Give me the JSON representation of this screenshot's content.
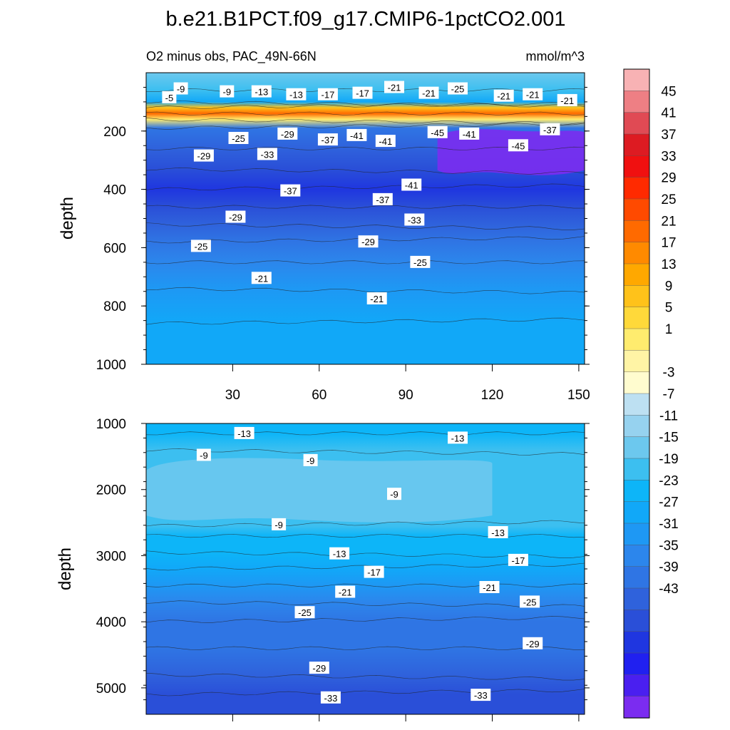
{
  "chart_data": {
    "type": "heatmap",
    "title": "b.e21.B1PCT.f09_g17.CMIP6-1pctCO2.001",
    "subtitle_left": "O2 minus obs, PAC_49N-66N",
    "units": "mmol/m^3",
    "colors": {
      "bar_neg": [
        "#7b2cf0",
        "#4a1ff0",
        "#2020f0",
        "#1f36e0",
        "#2a4fd8",
        "#2f62dc",
        "#2f75e4",
        "#2c86ec",
        "#1e98f4",
        "#11a8f8",
        "#0db5f8",
        "#3cbff0",
        "#6cc8ee",
        "#96d2ef",
        "#bde0f2"
      ],
      "bar_pos": [
        "#fffccf",
        "#fff4a5",
        "#ffec6e",
        "#ffd93a",
        "#ffc21a",
        "#ffa800",
        "#ff8a00",
        "#ff6a00",
        "#ff4a00",
        "#ff2a00",
        "#f01010",
        "#dd1b22",
        "#e04a54",
        "#ee7f84",
        "#f8b2b4"
      ]
    },
    "colorbar": {
      "labels": [
        "45",
        "41",
        "37",
        "33",
        "29",
        "25",
        "21",
        "17",
        "13",
        "9",
        "5",
        "1",
        "-3",
        "-7",
        "-11",
        "-15",
        "-19",
        "-23",
        "-27",
        "-31",
        "-35",
        "-39",
        "-43"
      ]
    },
    "panels": [
      {
        "name": "upper",
        "ylabel": "depth",
        "ylim": [
          0,
          1000
        ],
        "yticks": [
          200,
          400,
          600,
          800,
          1000
        ],
        "xlim": [
          0,
          152
        ],
        "xticks": [
          30,
          60,
          90,
          120,
          150
        ],
        "bands": [
          {
            "depth": 0,
            "value": -8
          },
          {
            "depth": 60,
            "value": -12
          },
          {
            "depth": 100,
            "value": -18
          },
          {
            "depth": 120,
            "value": 12
          },
          {
            "depth": 140,
            "value": 22
          },
          {
            "depth": 160,
            "value": 8
          },
          {
            "depth": 190,
            "value": -28
          },
          {
            "depth": 260,
            "value": -31
          },
          {
            "depth": 330,
            "value": -33
          },
          {
            "depth": 400,
            "value": -35
          },
          {
            "depth": 460,
            "value": -34
          },
          {
            "depth": 520,
            "value": -29
          },
          {
            "depth": 580,
            "value": -26
          },
          {
            "depth": 650,
            "value": -23
          },
          {
            "depth": 740,
            "value": -21
          },
          {
            "depth": 860,
            "value": -19
          },
          {
            "depth": 1000,
            "value": -17
          }
        ],
        "region": {
          "x_start": 101,
          "x_end": 152,
          "depth_top": 190,
          "depth_bottom": 360,
          "value": -46
        },
        "contour_labels": [
          {
            "text": "-5",
            "x": 8,
            "depth": 85
          },
          {
            "text": "-9",
            "x": 12,
            "depth": 55
          },
          {
            "text": "-9",
            "x": 28,
            "depth": 65
          },
          {
            "text": "-13",
            "x": 40,
            "depth": 65
          },
          {
            "text": "-13",
            "x": 52,
            "depth": 75
          },
          {
            "text": "-17",
            "x": 63,
            "depth": 75
          },
          {
            "text": "-17",
            "x": 75,
            "depth": 70
          },
          {
            "text": "-21",
            "x": 86,
            "depth": 50
          },
          {
            "text": "-21",
            "x": 98,
            "depth": 70
          },
          {
            "text": "-25",
            "x": 108,
            "depth": 55
          },
          {
            "text": "-21",
            "x": 124,
            "depth": 80
          },
          {
            "text": "-21",
            "x": 134,
            "depth": 75
          },
          {
            "text": "-21",
            "x": 146,
            "depth": 95
          },
          {
            "text": "-25",
            "x": 32,
            "depth": 225
          },
          {
            "text": "-29",
            "x": 49,
            "depth": 210
          },
          {
            "text": "-37",
            "x": 63,
            "depth": 230
          },
          {
            "text": "-41",
            "x": 73,
            "depth": 215
          },
          {
            "text": "-41",
            "x": 83,
            "depth": 235
          },
          {
            "text": "-45",
            "x": 101,
            "depth": 205
          },
          {
            "text": "-41",
            "x": 112,
            "depth": 210
          },
          {
            "text": "-37",
            "x": 140,
            "depth": 195
          },
          {
            "text": "-45",
            "x": 129,
            "depth": 250
          },
          {
            "text": "-29",
            "x": 20,
            "depth": 285
          },
          {
            "text": "-33",
            "x": 42,
            "depth": 280
          },
          {
            "text": "-37",
            "x": 50,
            "depth": 405
          },
          {
            "text": "-41",
            "x": 92,
            "depth": 385
          },
          {
            "text": "-37",
            "x": 82,
            "depth": 435
          },
          {
            "text": "-29",
            "x": 31,
            "depth": 495
          },
          {
            "text": "-33",
            "x": 93,
            "depth": 505
          },
          {
            "text": "-25",
            "x": 19,
            "depth": 595
          },
          {
            "text": "-29",
            "x": 77,
            "depth": 580
          },
          {
            "text": "-25",
            "x": 95,
            "depth": 650
          },
          {
            "text": "-21",
            "x": 40,
            "depth": 705
          },
          {
            "text": "-21",
            "x": 80,
            "depth": 775
          }
        ]
      },
      {
        "name": "lower",
        "ylabel": "depth",
        "ylim": [
          1000,
          5400
        ],
        "yticks": [
          1000,
          2000,
          3000,
          4000,
          5000
        ],
        "xlim": [
          0,
          152
        ],
        "xticks": [
          30,
          60,
          90,
          120,
          150
        ],
        "bands": [
          {
            "depth": 1000,
            "value": -15
          },
          {
            "depth": 1150,
            "value": -14
          },
          {
            "depth": 1400,
            "value": -11
          },
          {
            "depth": 2550,
            "value": -13
          },
          {
            "depth": 2700,
            "value": -14
          },
          {
            "depth": 2950,
            "value": -16
          },
          {
            "depth": 3200,
            "value": -18
          },
          {
            "depth": 3450,
            "value": -21
          },
          {
            "depth": 3700,
            "value": -24
          },
          {
            "depth": 4000,
            "value": -26
          },
          {
            "depth": 4400,
            "value": -28
          },
          {
            "depth": 4800,
            "value": -30
          },
          {
            "depth": 5100,
            "value": -32
          },
          {
            "depth": 5400,
            "value": -34
          }
        ],
        "region": {
          "x_start": 0,
          "x_end": 120,
          "depth_top": 1500,
          "depth_bottom": 2550,
          "value": -8
        },
        "contour_labels": [
          {
            "text": "-13",
            "x": 34,
            "depth": 1150
          },
          {
            "text": "-13",
            "x": 108,
            "depth": 1220
          },
          {
            "text": "-9",
            "x": 20,
            "depth": 1480
          },
          {
            "text": "-9",
            "x": 57,
            "depth": 1560
          },
          {
            "text": "-9",
            "x": 86,
            "depth": 2070
          },
          {
            "text": "-9",
            "x": 46,
            "depth": 2530
          },
          {
            "text": "-13",
            "x": 122,
            "depth": 2650
          },
          {
            "text": "-13",
            "x": 67,
            "depth": 2970
          },
          {
            "text": "-17",
            "x": 79,
            "depth": 3250
          },
          {
            "text": "-17",
            "x": 129,
            "depth": 3070
          },
          {
            "text": "-21",
            "x": 69,
            "depth": 3550
          },
          {
            "text": "-21",
            "x": 119,
            "depth": 3480
          },
          {
            "text": "-25",
            "x": 55,
            "depth": 3860
          },
          {
            "text": "-25",
            "x": 133,
            "depth": 3700
          },
          {
            "text": "-29",
            "x": 134,
            "depth": 4330
          },
          {
            "text": "-29",
            "x": 60,
            "depth": 4700
          },
          {
            "text": "-33",
            "x": 64,
            "depth": 5150
          },
          {
            "text": "-33",
            "x": 116,
            "depth": 5110
          }
        ]
      }
    ]
  }
}
